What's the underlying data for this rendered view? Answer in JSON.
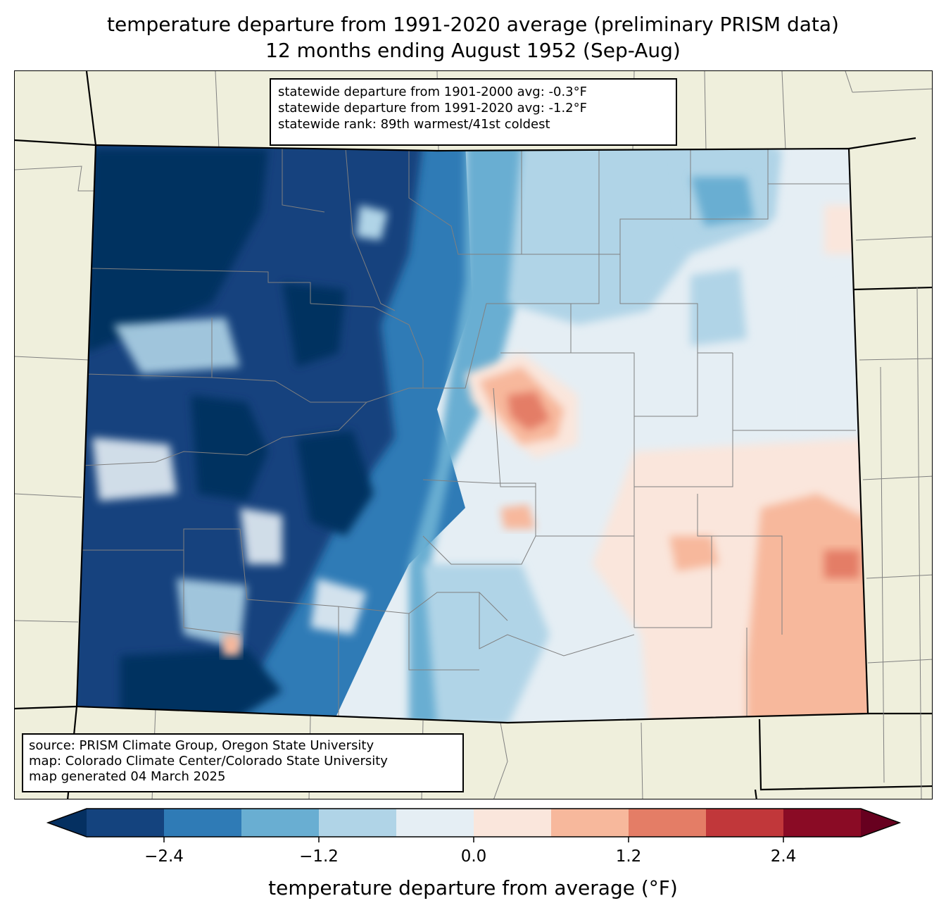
{
  "title_line1": "temperature departure from 1991-2020 average (preliminary PRISM data)",
  "title_line2": "12 months ending August 1952 (Sep-Aug)",
  "stats": {
    "line1": "statewide departure from 1901-2000 avg: -0.3°F",
    "line2": "statewide departure from 1991-2020 avg: -1.2°F",
    "line3": "statewide rank: 89th warmest/41st coldest"
  },
  "source": {
    "line1": "source: PRISM Climate Group, Oregon State University",
    "line2": "map: Colorado Climate Center/Colorado State University",
    "line3": "map generated 04 March 2025"
  },
  "colorbar": {
    "label": "temperature departure from average (°F)",
    "bins": [
      -3.0,
      -2.4,
      -1.8,
      -1.2,
      -0.6,
      0.0,
      0.6,
      1.2,
      1.8,
      2.4,
      3.0
    ],
    "colors": [
      "#14437e",
      "#2f7bb6",
      "#69aed2",
      "#b0d4e7",
      "#e5eef4",
      "#fae6dc",
      "#f7b89c",
      "#e47d66",
      "#c1373a",
      "#8a0b25"
    ],
    "under_color": "#053061",
    "over_color": "#67001f",
    "ticks": [
      {
        "value": -2.4,
        "label": "−2.4"
      },
      {
        "value": -1.2,
        "label": "−1.2"
      },
      {
        "value": 0.0,
        "label": "0.0"
      },
      {
        "value": 1.2,
        "label": "1.2"
      },
      {
        "value": 2.4,
        "label": "2.4"
      }
    ]
  },
  "colors": {
    "land": "#efefdc",
    "county_line": "#808080",
    "state_line": "#000000"
  }
}
